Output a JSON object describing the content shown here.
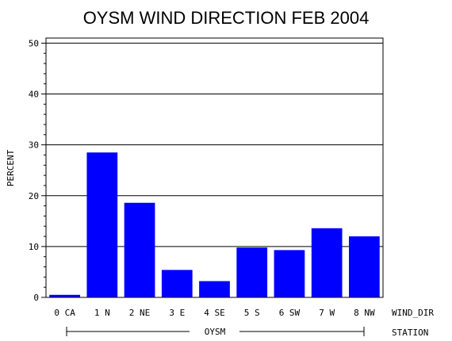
{
  "chart_data": {
    "type": "bar",
    "title": "OYSM WIND DIRECTION FEB 2004",
    "ylabel": "PERCENT",
    "xlabel": "WIND_DIR",
    "group_label_name": "STATION",
    "group_label": "OYSM",
    "categories": [
      "0 CA",
      "1 N",
      "2 NE",
      "3 E",
      "4 SE",
      "5 S",
      "6 SW",
      "7 W",
      "8 NW"
    ],
    "values": [
      0.5,
      28.5,
      18.6,
      5.4,
      3.2,
      9.8,
      9.3,
      13.6,
      12.0
    ],
    "ylim": [
      0,
      51
    ],
    "yticks": [
      "0",
      "10",
      "20",
      "30",
      "40",
      "50"
    ],
    "grid": true,
    "bar_color": "#0000ff"
  }
}
